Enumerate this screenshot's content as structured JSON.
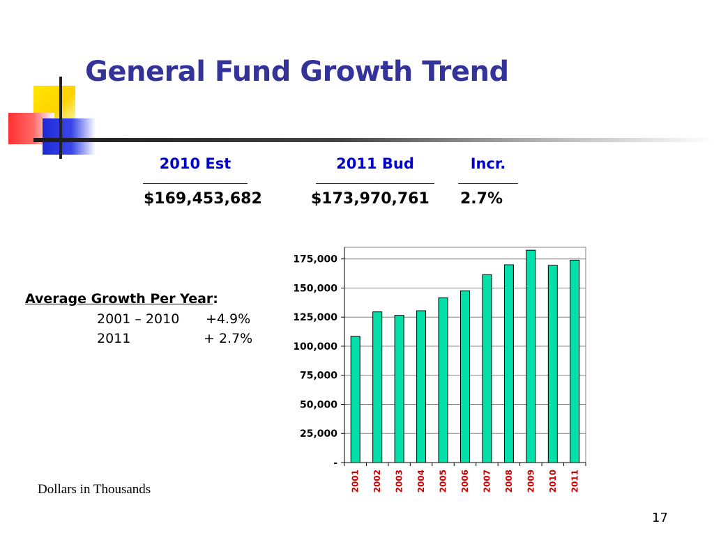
{
  "title": "General Fund Growth Trend",
  "summary": {
    "headers": [
      "2010 Est",
      "2011 Bud",
      "Incr."
    ],
    "values": [
      "$169,453,682",
      "$173,970,761",
      "2.7%"
    ]
  },
  "growth": {
    "heading": "Average Growth Per Year",
    "heading_suffix": ":",
    "rows": [
      {
        "period": "2001 – 2010",
        "rate": "+4.9%"
      },
      {
        "period": "2011",
        "rate": "+ 2.7%"
      }
    ]
  },
  "units_note": "Dollars in Thousands",
  "page_number": "17",
  "colors": {
    "title": "#333399",
    "header": "#0000cc",
    "bar": "#00e0a8",
    "x_tick": "#cc0000"
  },
  "chart_data": {
    "type": "bar",
    "categories": [
      "2001",
      "2002",
      "2003",
      "2004",
      "2005",
      "2006",
      "2007",
      "2008",
      "2009",
      "2010",
      "2011"
    ],
    "values": [
      108500,
      129500,
      126500,
      130500,
      141500,
      147500,
      161500,
      170000,
      182500,
      169453,
      173971
    ],
    "title": "",
    "xlabel": "",
    "ylabel": "",
    "ylim": [
      0,
      185000
    ],
    "yticks": [
      0,
      25000,
      50000,
      75000,
      100000,
      125000,
      150000,
      175000
    ],
    "ytick_labels": [
      "-",
      "25,000",
      "50,000",
      "75,000",
      "100,000",
      "125,000",
      "150,000",
      "175,000"
    ],
    "grid": true,
    "legend": "none"
  }
}
